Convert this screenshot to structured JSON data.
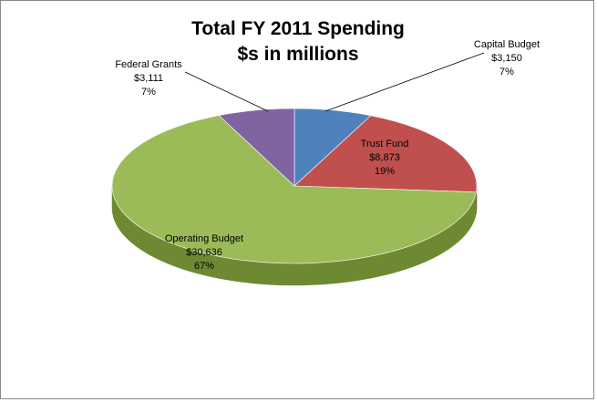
{
  "chart_data": {
    "type": "pie",
    "title": "Total FY 2011 Spending",
    "subtitle": "$s in millions",
    "slices": [
      {
        "name": "Capital Budget",
        "value": 3150,
        "value_label": "$3,150",
        "percent_label": "7%",
        "color": "#4f81bd",
        "side_color": "#3a5f8c"
      },
      {
        "name": "Trust Fund",
        "value": 8873,
        "value_label": "$8,873",
        "percent_label": "19%",
        "color": "#c0504d",
        "side_color": "#8c3533"
      },
      {
        "name": "Operating Budget",
        "value": 30636,
        "value_label": "$30,636",
        "percent_label": "67%",
        "color": "#9bbb59",
        "side_color": "#6d8a32"
      },
      {
        "name": "Federal Grants",
        "value": 3111,
        "value_label": "$3,111",
        "percent_label": "7%",
        "color": "#8064a2",
        "side_color": "#5c4678"
      }
    ]
  }
}
